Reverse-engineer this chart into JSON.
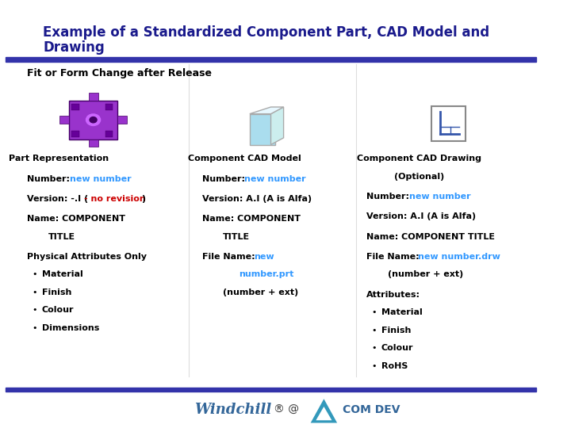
{
  "title_line1": "Example of a Standardized Component Part, CAD Model and",
  "title_line2": "Drawing",
  "subtitle": "Fit or Form Change after Release",
  "bg_color": "#ffffff",
  "header_bar_color": "#3333aa",
  "title_color": "#1a1a8c",
  "body_color": "#000000",
  "highlight_color": "#3399ff",
  "red_color": "#cc0000",
  "footer_bar_color": "#3333aa",
  "footer_windchill_color": "#336699",
  "footer_comdev_color": "#336699"
}
